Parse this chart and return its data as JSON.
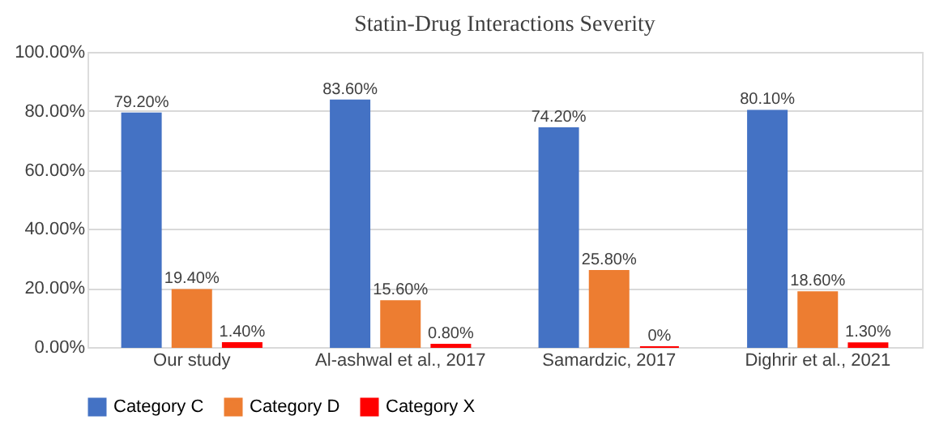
{
  "chart_data": {
    "type": "bar",
    "title": "Statin-Drug  Interactions  Severity",
    "categories": [
      "Our study",
      "Al-ashwal et al., 2017",
      "Samardzic, 2017",
      "Dighrir et al., 2021"
    ],
    "series": [
      {
        "name": "Category C",
        "color": "#4472c4",
        "values": [
          79.2,
          83.6,
          74.2,
          80.1
        ],
        "value_labels": [
          "79.20%",
          "83.60%",
          "74.20%",
          "80.10%"
        ]
      },
      {
        "name": "Category D",
        "color": "#ed7d31",
        "values": [
          19.4,
          15.6,
          25.8,
          18.6
        ],
        "value_labels": [
          "19.40%",
          "15.60%",
          "25.80%",
          "18.60%"
        ]
      },
      {
        "name": "Category X",
        "color": "#ff0000",
        "values": [
          1.4,
          0.8,
          0,
          1.3
        ],
        "value_labels": [
          "1.40%",
          "0.80%",
          "0%",
          "1.30%"
        ]
      }
    ],
    "ylim": [
      0,
      100
    ],
    "yticks": [
      {
        "value": 0,
        "label": "0.00%"
      },
      {
        "value": 20,
        "label": "20.00%"
      },
      {
        "value": 40,
        "label": "40.00%"
      },
      {
        "value": 60,
        "label": "60.00%"
      },
      {
        "value": 80,
        "label": "80.00%"
      },
      {
        "value": 100,
        "label": "100.00%"
      }
    ],
    "grid": "y",
    "legend": "bottom"
  }
}
